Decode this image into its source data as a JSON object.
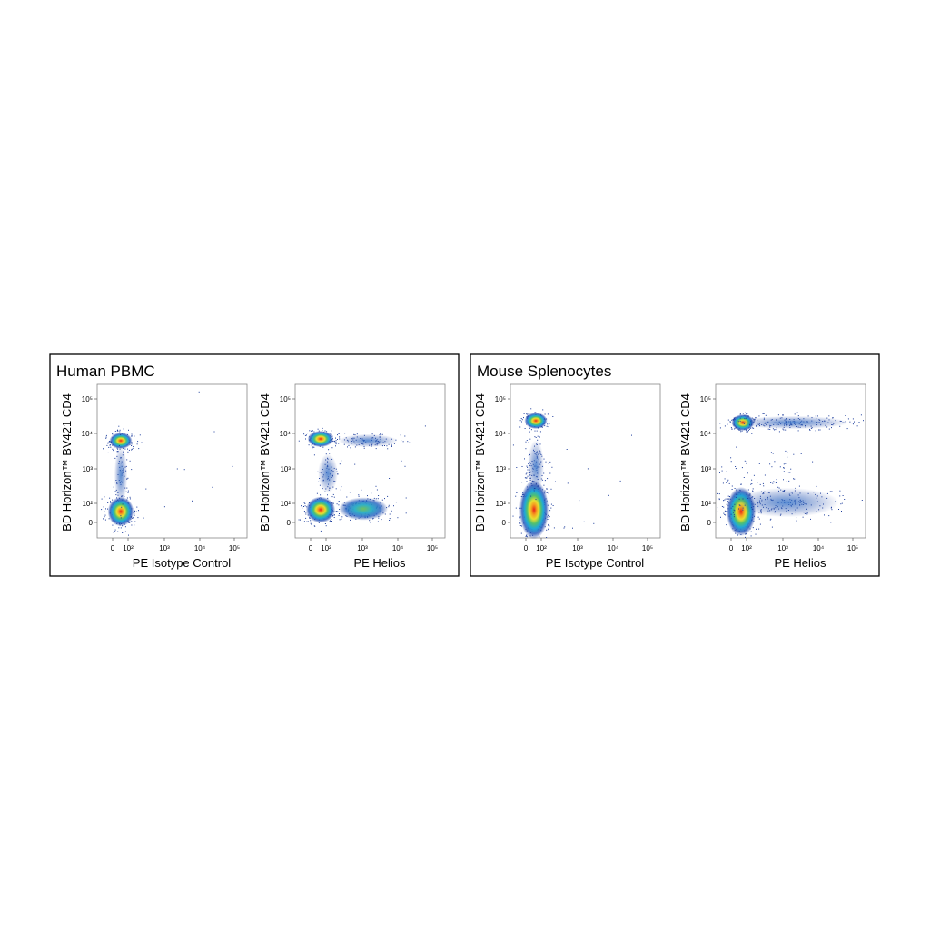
{
  "panels": [
    {
      "title": "Human PBMC",
      "plots": [
        {
          "y_label": "BD Horizon™ BV421 CD4",
          "x_label": "PE Isotype Control",
          "y_ticks": [
            "10⁵",
            "10⁴",
            "10³",
            "10²",
            "0"
          ],
          "x_ticks": [
            "0",
            "10²",
            "10³",
            "10⁴",
            "10⁵"
          ]
        },
        {
          "y_label": "BD Horizon™ BV421 CD4",
          "x_label": "PE Helios",
          "y_ticks": [
            "10⁵",
            "10⁴",
            "10³",
            "10²",
            "0"
          ],
          "x_ticks": [
            "0",
            "10²",
            "10³",
            "10⁴",
            "10⁵"
          ]
        }
      ]
    },
    {
      "title": "Mouse Splenocytes",
      "plots": [
        {
          "y_label": "BD Horizon™ BV421 CD4",
          "x_label": "PE Isotype Control",
          "y_ticks": [
            "10⁵",
            "10⁴",
            "10³",
            "10²",
            "0"
          ],
          "x_ticks": [
            "0",
            "10²",
            "10³",
            "10⁴",
            "10⁵"
          ]
        },
        {
          "y_label": "BD Horizon™ BV421 CD4",
          "x_label": "PE Helios",
          "y_ticks": [
            "10⁵",
            "10⁴",
            "10³",
            "10²",
            "0"
          ],
          "x_ticks": [
            "0",
            "10²",
            "10³",
            "10⁴",
            "10⁵"
          ]
        }
      ]
    }
  ]
}
